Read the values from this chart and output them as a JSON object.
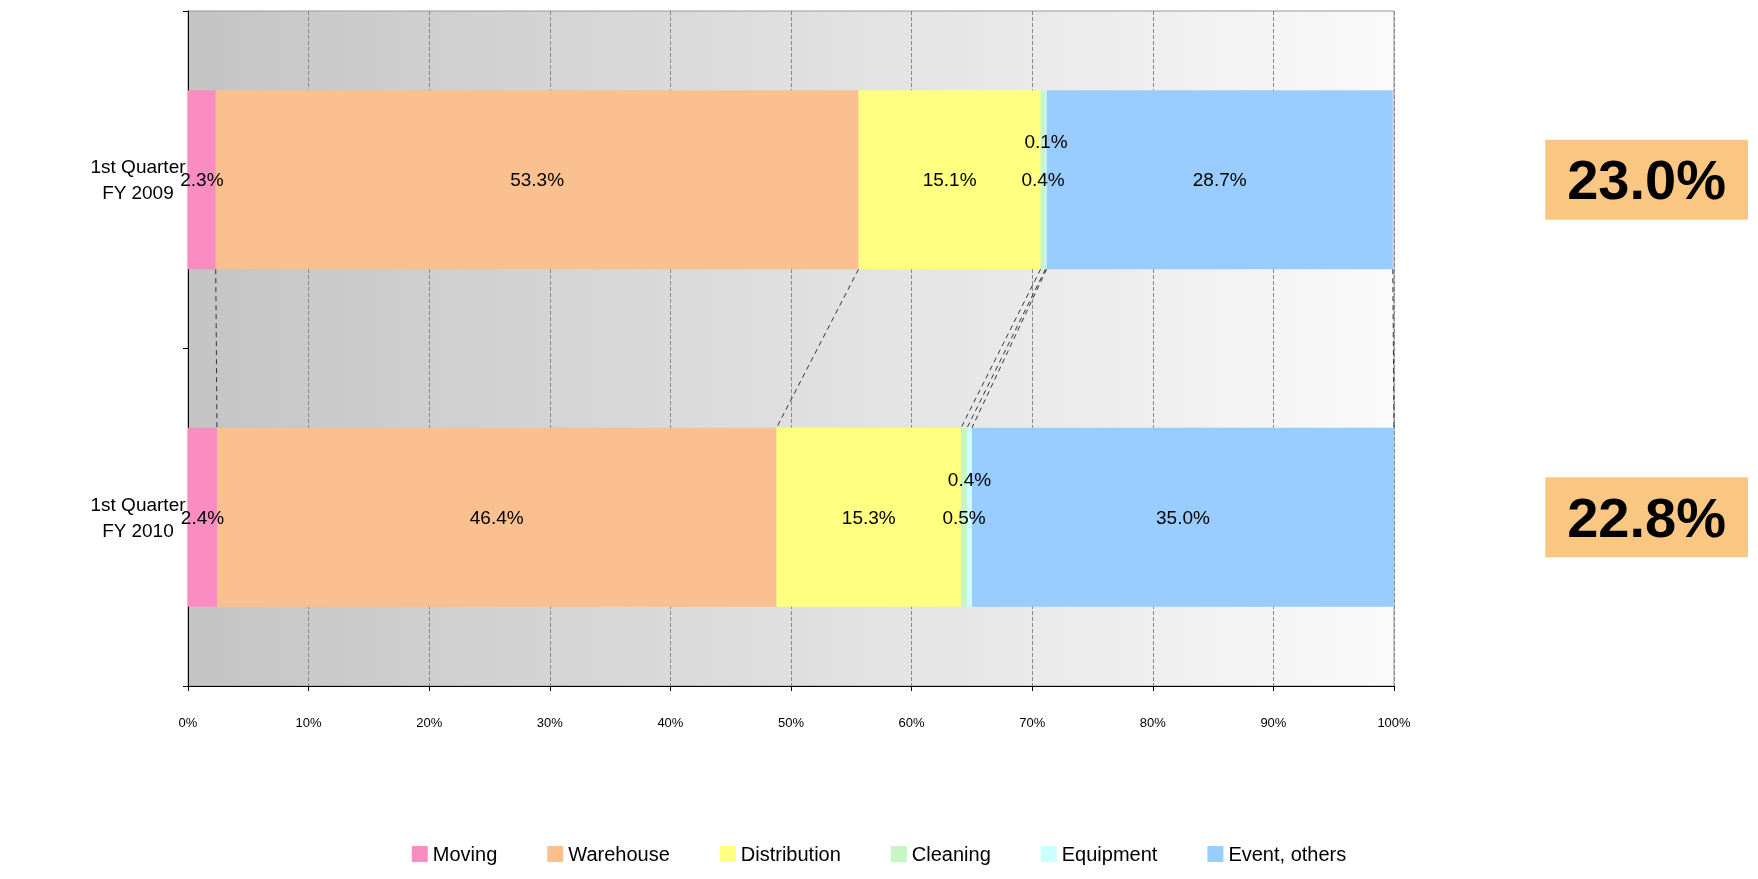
{
  "chart_data": {
    "type": "bar",
    "orientation": "horizontal",
    "stacked": true,
    "categories": [
      "1st Quarter\nFY 2009",
      "1st Quarter\nFY 2010"
    ],
    "series": [
      {
        "name": "Moving",
        "color": "#f98cc0",
        "values": [
          2.3,
          2.4
        ],
        "value_labels": [
          "2.3%",
          "2.4%"
        ]
      },
      {
        "name": "Warehouse",
        "color": "#fac090",
        "values": [
          53.3,
          46.4
        ],
        "value_labels": [
          "53.3%",
          "46.4%"
        ]
      },
      {
        "name": "Distribution",
        "color": "#ffff80",
        "values": [
          15.1,
          15.3
        ],
        "value_labels": [
          "15.1%",
          "15.3%"
        ]
      },
      {
        "name": "Cleaning",
        "color": "#c6f5c6",
        "values": [
          0.4,
          0.5
        ],
        "value_labels": [
          "0.4%",
          "0.5%"
        ]
      },
      {
        "name": "Equipment",
        "color": "#ccffff",
        "values": [
          0.1,
          0.4
        ],
        "value_labels": [
          "0.1%",
          "0.4%"
        ]
      },
      {
        "name": "Event, others",
        "color": "#99ccff",
        "values": [
          28.7,
          35.0
        ],
        "value_labels": [
          "28.7%",
          "35.0%"
        ]
      }
    ],
    "xlim": [
      0,
      100
    ],
    "xticks": [
      {
        "value": 0,
        "label": "0%"
      },
      {
        "value": 10,
        "label": "10%"
      },
      {
        "value": 20,
        "label": "20%"
      },
      {
        "value": 30,
        "label": "30%"
      },
      {
        "value": 40,
        "label": "40%"
      },
      {
        "value": 50,
        "label": "50%"
      },
      {
        "value": 60,
        "label": "60%"
      },
      {
        "value": 70,
        "label": "70%"
      },
      {
        "value": 80,
        "label": "80%"
      },
      {
        "value": 90,
        "label": "90%"
      },
      {
        "value": 100,
        "label": "100%"
      }
    ],
    "grid": "x",
    "legend": "bottom",
    "annotations": [
      "23.0%",
      "22.8%"
    ]
  }
}
